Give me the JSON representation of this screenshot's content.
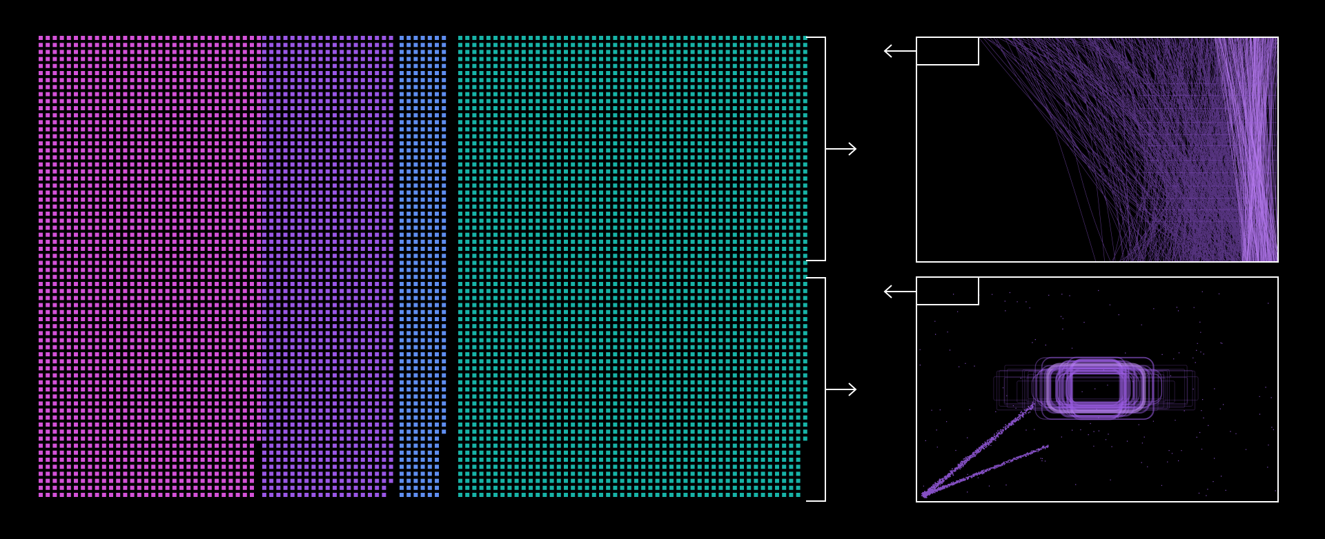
{
  "colors": {
    "background": "#000000",
    "outline": "#ffffff",
    "magenta": "#d452d8",
    "violet": "#9a57e6",
    "blue": "#5f8ef0",
    "teal": "#17b3a7",
    "purple": "#9b5de5"
  },
  "dot_grids": [
    {
      "name": "magenta-grid",
      "color_key": "magenta",
      "columns": 32,
      "rows": 66,
      "short_columns": 1,
      "short_rows": 58
    },
    {
      "name": "violet-grid",
      "color_key": "violet",
      "columns": 19,
      "rows": 66,
      "short_columns": 1,
      "short_rows": 64
    },
    {
      "name": "blue-grid",
      "color_key": "blue",
      "columns": 7,
      "rows": 66,
      "short_columns": 1,
      "short_rows": 57
    },
    {
      "name": "teal-grid",
      "color_key": "teal",
      "columns": 50,
      "rows": 66,
      "short_columns": 1,
      "short_rows": 58
    }
  ],
  "panels": [
    {
      "name": "lines-panel",
      "kind": "lines",
      "color_key": "purple"
    },
    {
      "name": "scatter-panel",
      "kind": "scatter",
      "color_key": "purple"
    }
  ],
  "icons": [
    "bracket-icon",
    "arrow-right-icon",
    "arrow-left-icon",
    "thumbnail-box"
  ]
}
